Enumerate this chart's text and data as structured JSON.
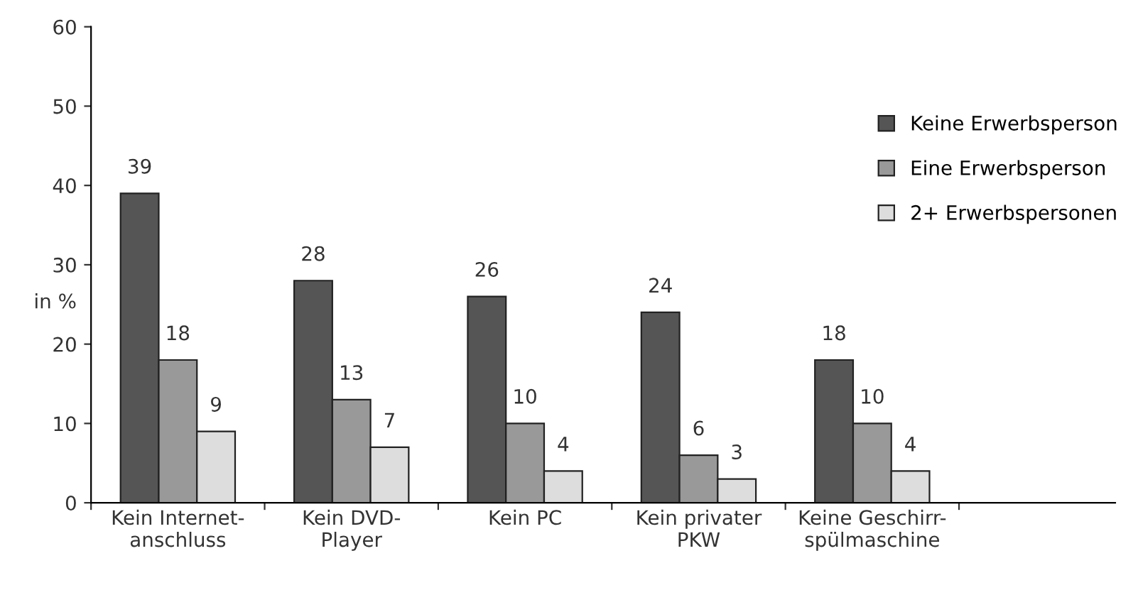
{
  "chart_data": {
    "type": "bar",
    "ylabel": "in %",
    "categories": [
      "Kein Internet-\nanschluss",
      "Kein DVD-\nPlayer",
      "Kein PC",
      "Kein privater\nPKW",
      "Keine Geschirr-\nspülmaschine"
    ],
    "series": [
      {
        "name": "Keine Erwerbsperson",
        "color": "#555555",
        "values": [
          39,
          28,
          26,
          24,
          18
        ]
      },
      {
        "name": "Eine Erwerbsperson",
        "color": "#999999",
        "values": [
          18,
          13,
          10,
          6,
          10
        ]
      },
      {
        "name": "2+ Erwerbspersonen",
        "color": "#dddddd",
        "values": [
          9,
          7,
          4,
          3,
          4
        ]
      }
    ],
    "ylim": [
      0,
      60
    ],
    "yticks": [
      0,
      10,
      20,
      30,
      40,
      50,
      60
    ],
    "grid": false,
    "legend": "right",
    "data_labels": true
  }
}
